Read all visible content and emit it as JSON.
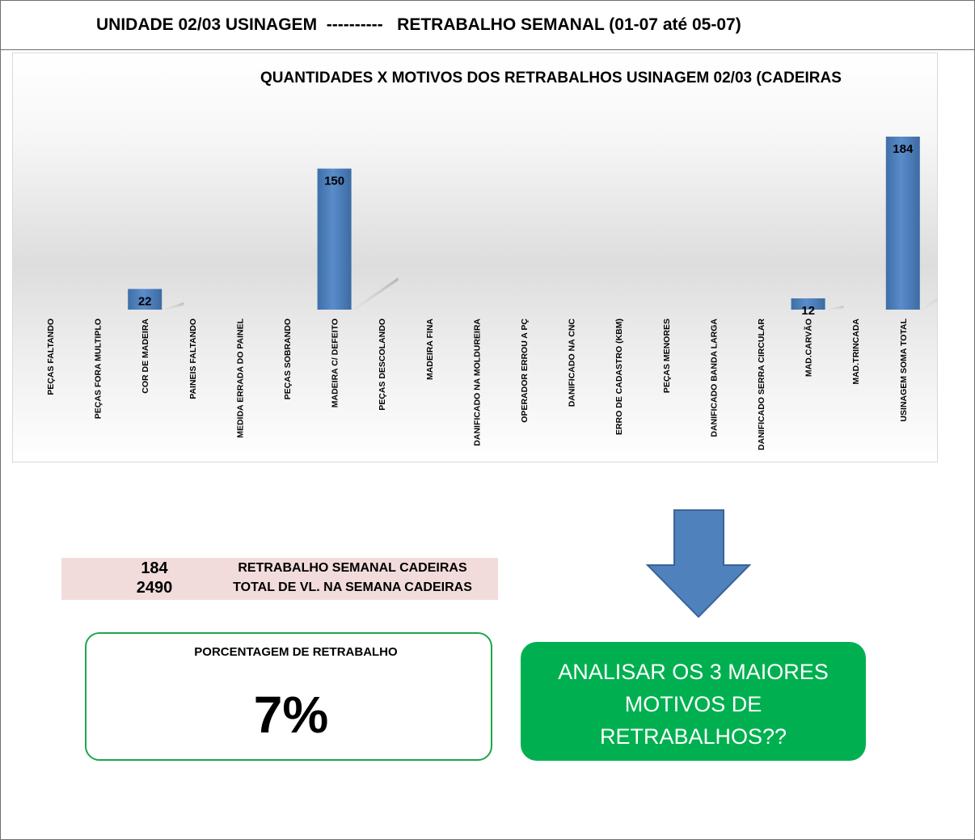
{
  "header": {
    "title": "UNIDADE 02/03 USINAGEM  ----------   RETRABALHO SEMANAL (01-07 até 05-07)"
  },
  "chart_data": {
    "type": "bar",
    "title": "QUANTIDADES X MOTIVOS DOS RETRABALHOS USINAGEM 02/03 (CADEIRAS",
    "categories": [
      "PEÇAS FALTANDO",
      "PEÇAS FORA MULTIPLO",
      "COR DE MADEIRA",
      "PAINEIS FALTANDO",
      "MEDIDA ERRADA DO PAINEL",
      "PEÇAS SOBRANDO",
      "MADEIRA C/ DEFEITO",
      "PEÇAS DESCOLANDO",
      "MADEIRA FINA",
      "DANIFICADO NA MOLDUREIRA",
      "OPERADOR ERROU A PÇ",
      "DANIFICADO NA CNC",
      "ERRO DE CADASTRO (KBM)",
      "PEÇAS MENORES",
      "DANIFICADO BANDA LARGA",
      "DANIFICADO SERRA CIRCULAR",
      "MAD.CARVÃO",
      "MAD.TRINCADA",
      "USINAGEM SOMA TOTAL"
    ],
    "values": [
      null,
      null,
      22,
      null,
      null,
      null,
      150,
      null,
      null,
      null,
      null,
      null,
      null,
      null,
      null,
      null,
      12,
      null,
      184
    ],
    "data_labels": [
      "",
      "",
      "22",
      "",
      "",
      "",
      "150",
      "",
      "",
      "",
      "",
      "",
      "",
      "",
      "",
      "",
      "12",
      "",
      "184"
    ],
    "ylim": [
      0,
      184
    ],
    "grid": false,
    "bar_color": "#4f81bd"
  },
  "summary": {
    "rows": [
      {
        "value": "184",
        "label": "RETRABALHO SEMANAL CADEIRAS"
      },
      {
        "value": "2490",
        "label": "TOTAL DE VL. NA SEMANA CADEIRAS"
      }
    ]
  },
  "percentage": {
    "label": "PORCENTAGEM DE RETRABALHO",
    "value": "7%"
  },
  "action": {
    "lines": [
      "ANALISAR OS 3 MAIORES",
      "MOTIVOS DE",
      "RETRABALHOS??"
    ]
  },
  "arrow": {
    "icon": "arrow-down-icon",
    "color": "#4f81bd"
  }
}
